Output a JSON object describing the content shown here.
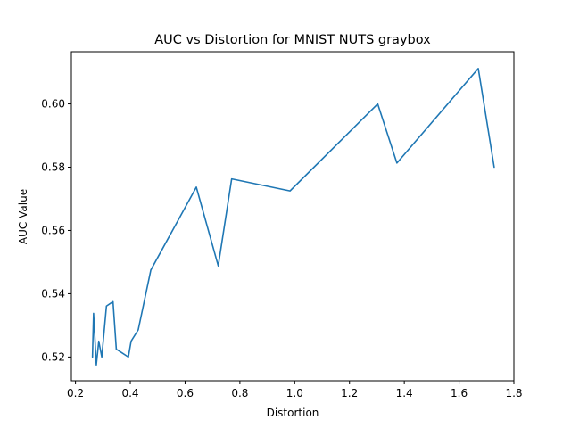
{
  "chart_data": {
    "type": "line",
    "title": "AUC vs Distortion for MNIST NUTS graybox",
    "xlabel": "Distortion",
    "ylabel": "AUC Value",
    "xlim": [
      0.185,
      1.8
    ],
    "ylim": [
      0.5125,
      0.6165
    ],
    "xticks": [
      0.2,
      0.4,
      0.6,
      0.8,
      1.0,
      1.2,
      1.4,
      1.6,
      1.8
    ],
    "xtick_labels": [
      "0.2",
      "0.4",
      "0.6",
      "0.8",
      "1.0",
      "1.2",
      "1.4",
      "1.6",
      "1.8"
    ],
    "yticks": [
      0.52,
      0.54,
      0.56,
      0.58,
      0.6
    ],
    "ytick_labels": [
      "0.52",
      "0.54",
      "0.56",
      "0.58",
      "0.60"
    ],
    "grid": false,
    "series": [
      {
        "color": "#1f77b4",
        "x": [
          0.262,
          0.266,
          0.276,
          0.285,
          0.296,
          0.313,
          0.337,
          0.349,
          0.393,
          0.403,
          0.429,
          0.475,
          0.641,
          0.721,
          0.77,
          0.983,
          1.303,
          1.373,
          1.67,
          1.728
        ],
        "y": [
          0.52,
          0.5338,
          0.5175,
          0.525,
          0.52,
          0.5361,
          0.5375,
          0.5225,
          0.52,
          0.525,
          0.5286,
          0.5475,
          0.5737,
          0.5488,
          0.5763,
          0.5725,
          0.6,
          0.5813,
          0.6112,
          0.58
        ]
      }
    ]
  }
}
